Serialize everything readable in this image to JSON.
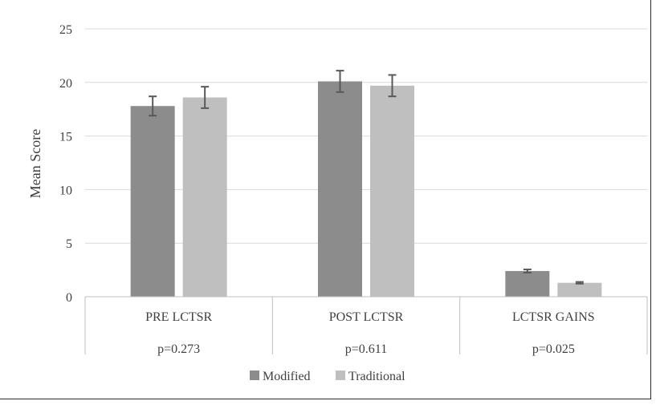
{
  "chart_data": {
    "type": "bar",
    "ylabel": "Mean Score",
    "ylim": [
      0,
      25
    ],
    "yticks": [
      0,
      5,
      10,
      15,
      20,
      25
    ],
    "grid": true,
    "legend_position": "bottom",
    "categories": [
      "PRE LCTSR",
      "POST LCTSR",
      "LCTSR GAINS"
    ],
    "category_notes": [
      "p=0.273",
      "p=0.611",
      "p=0.025"
    ],
    "series": [
      {
        "name": "Modified",
        "color": "#8c8c8c",
        "values": [
          17.8,
          20.1,
          2.4
        ],
        "error": [
          0.9,
          1.0,
          0.15
        ]
      },
      {
        "name": "Traditional",
        "color": "#bfbfbf",
        "values": [
          18.6,
          19.7,
          1.3
        ],
        "error": [
          1.0,
          1.0,
          0.08
        ]
      }
    ]
  }
}
